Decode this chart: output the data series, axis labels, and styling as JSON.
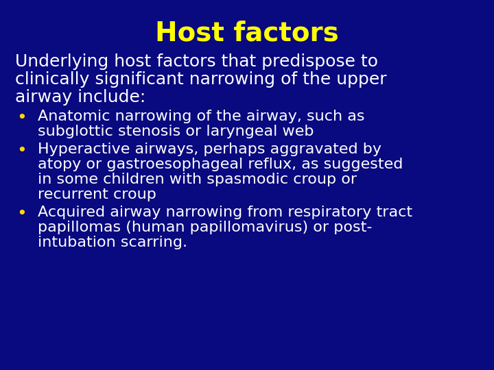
{
  "title": "Host factors",
  "title_color": "#FFFF00",
  "title_fontsize": 28,
  "background_color": "#090980",
  "text_color": "#FFFFFF",
  "bullet_color": "#FFD700",
  "intro_text_lines": [
    "Underlying host factors that predispose to",
    "clinically significant narrowing of the upper",
    "airway include:"
  ],
  "intro_fontsize": 18,
  "bullet_fontsize": 16,
  "bullets": [
    [
      "Anatomic narrowing of the airway, such as",
      "subglottic stenosis or laryngeal web"
    ],
    [
      "Hyperactive airways, perhaps aggravated by",
      "atopy or gastroesophageal reflux, as suggested",
      "in some children with spasmodic croup or",
      "recurrent croup"
    ],
    [
      "Acquired airway narrowing from respiratory tract",
      "papillomas (human papillomavirus) or post-",
      "intubation scarring."
    ]
  ],
  "figsize": [
    7.2,
    5.4
  ],
  "dpi": 100
}
